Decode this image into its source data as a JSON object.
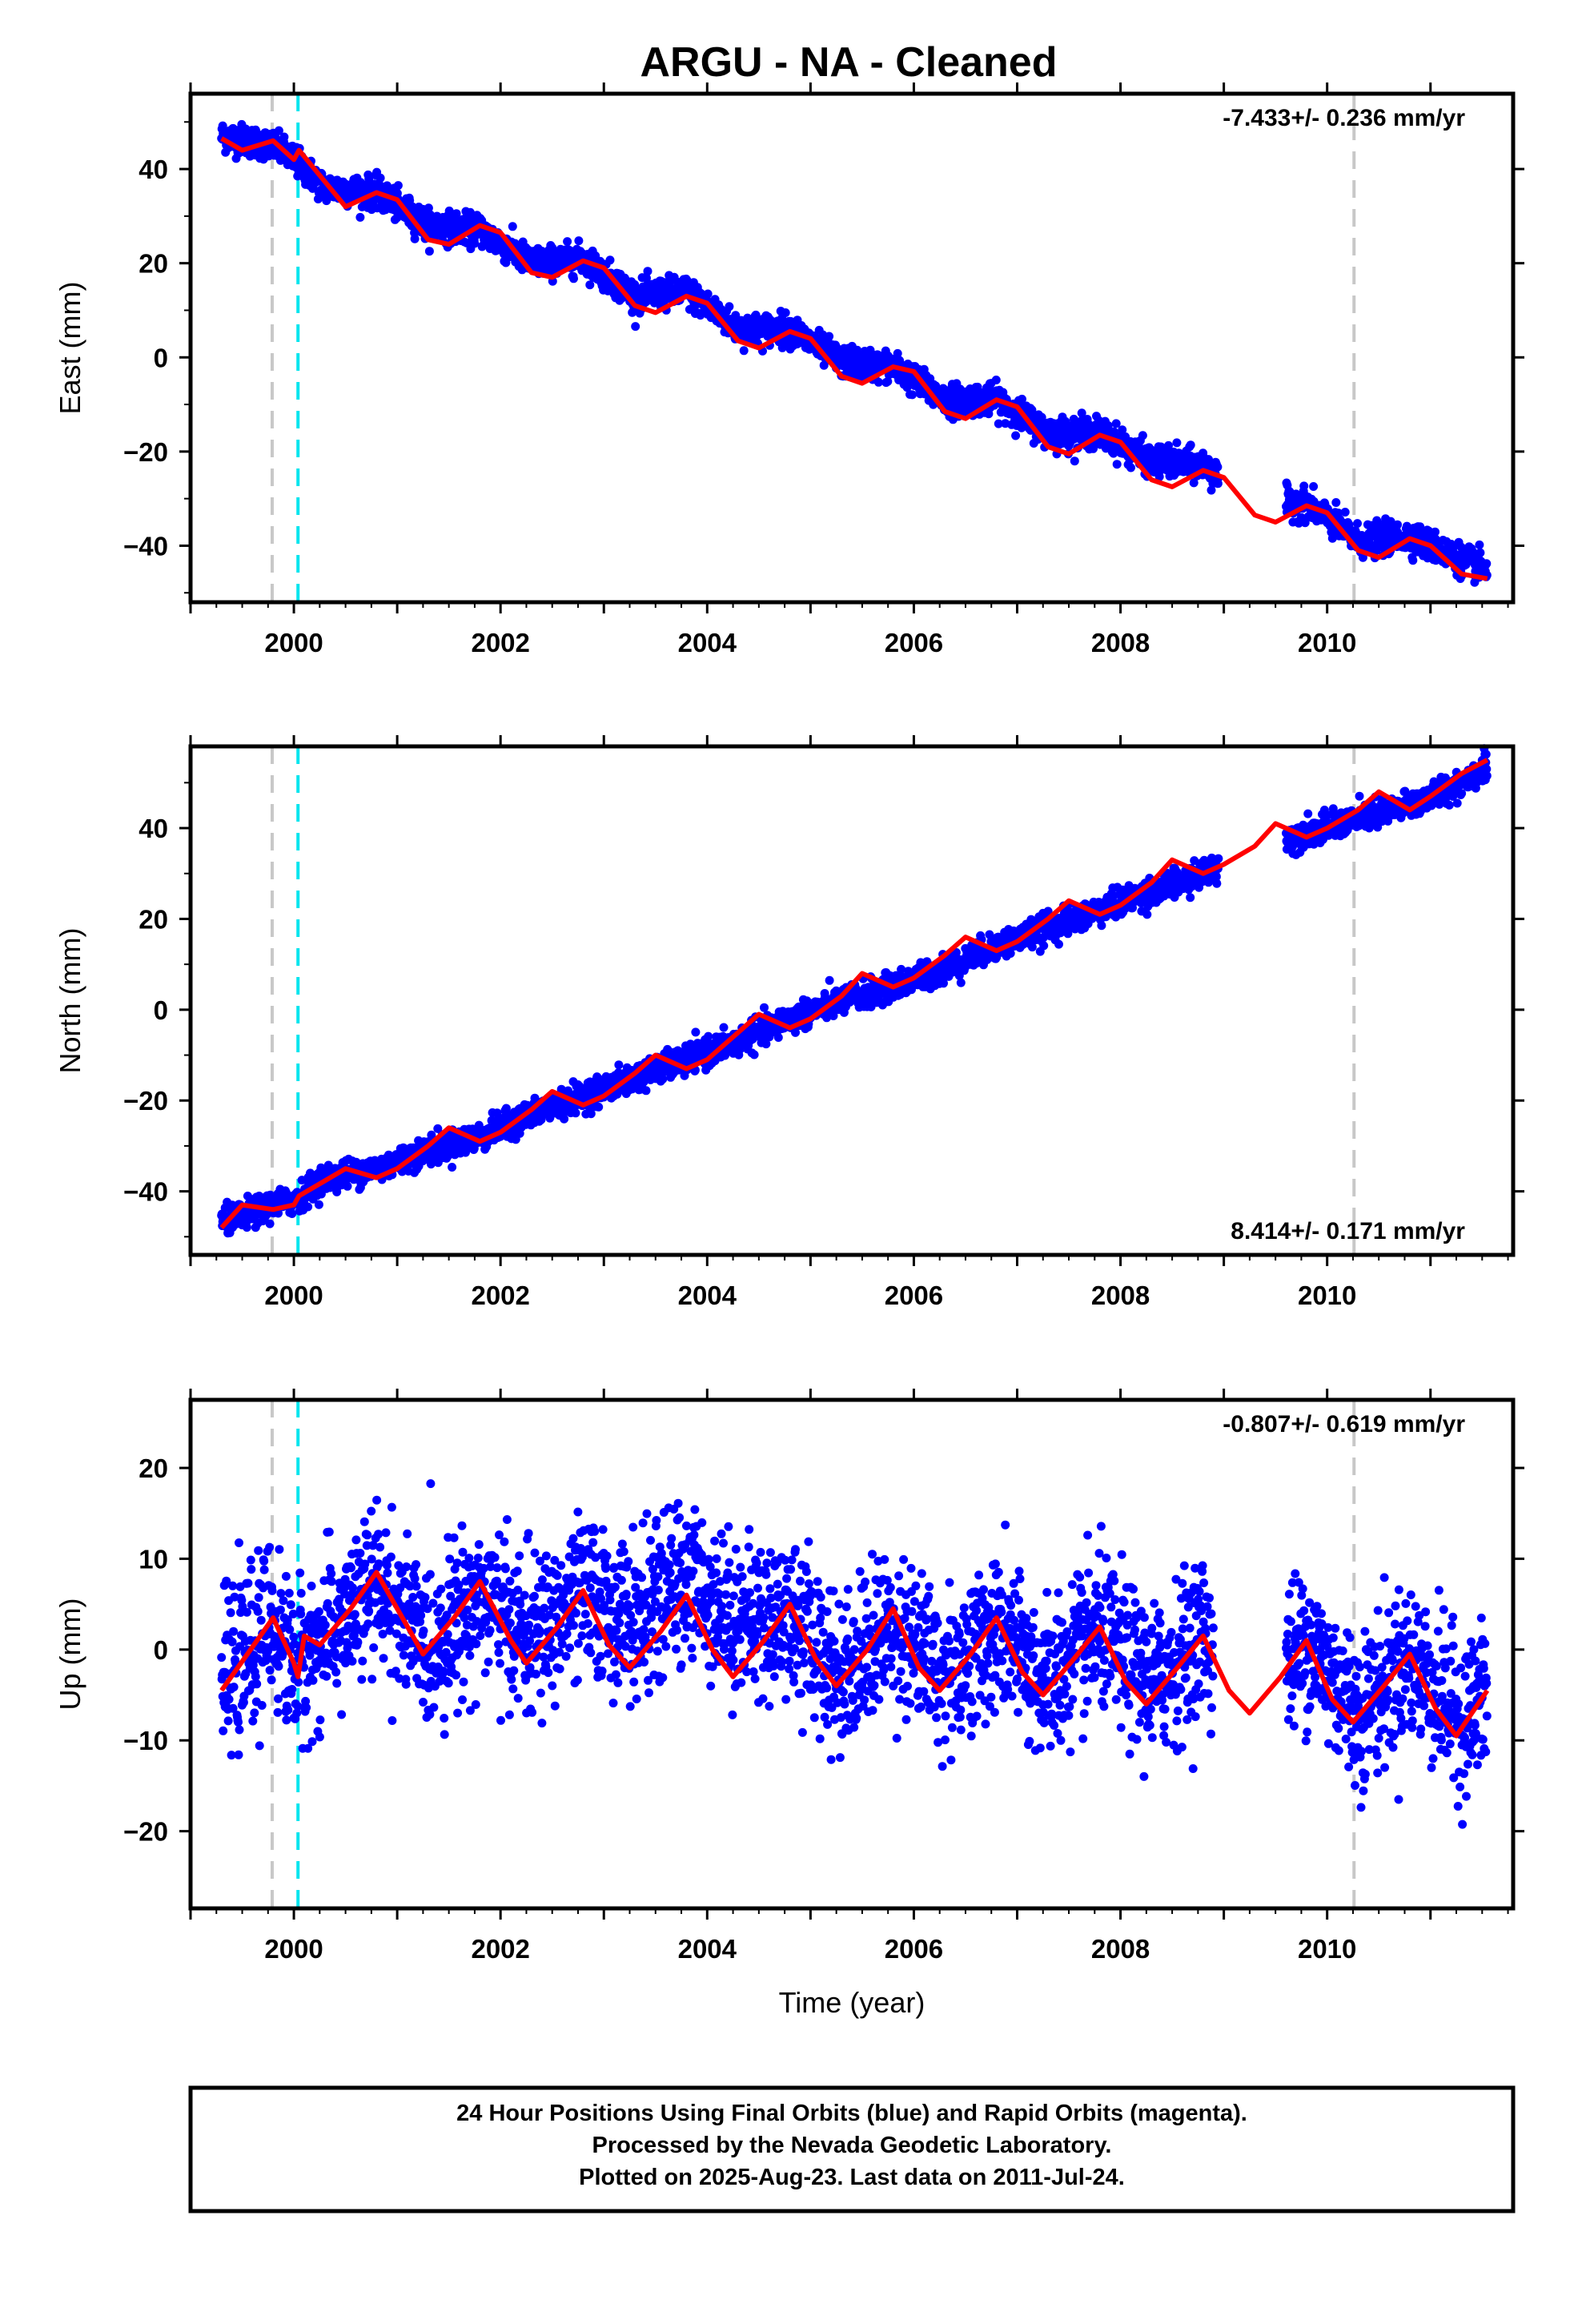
{
  "title": "ARGU  - NA - Cleaned",
  "colors": {
    "points": "#0000ff",
    "fit": "#ff0000",
    "event_gray": "#c8c8c8",
    "event_cyan": "#00e5ee",
    "frame": "#000000"
  },
  "chart_data": [
    {
      "type": "scatter",
      "component": "East",
      "ylabel": "East (mm)",
      "xlabel": "",
      "rate_label": "-7.433+/- 0.236 mm/yr",
      "rate_position": "top-right",
      "xlim": [
        1999.0,
        2011.8
      ],
      "ylim": [
        -52,
        56
      ],
      "xticks": [
        "2000",
        "2002",
        "2004",
        "2006",
        "2008",
        "2010"
      ],
      "yticks": [
        "40",
        "20",
        "0",
        "−20",
        "−40"
      ],
      "ytick_values": [
        40,
        20,
        0,
        -20,
        -40
      ],
      "gray_event_lines": [
        1999.79,
        2010.26
      ],
      "cyan_event_lines": [
        2000.04
      ],
      "series": [
        {
          "kind": "observed_points_trend",
          "x": [
            1999.3,
            1999.8,
            2000.0,
            2000.3,
            2000.8,
            2001.3,
            2001.8,
            2002.3,
            2002.8,
            2003.3,
            2003.8,
            2004.3,
            2004.8,
            2005.3,
            2005.8,
            2006.3,
            2006.8,
            2007.3,
            2007.8,
            2008.3,
            2008.8,
            2009.3,
            2009.8,
            2010.3,
            2010.8,
            2011.3,
            2011.55
          ],
          "y": [
            47,
            45,
            42,
            36,
            35,
            28,
            27,
            20,
            21,
            13,
            14,
            6,
            6,
            -1,
            -2,
            -9,
            -9,
            -16,
            -16,
            -22,
            -23,
            -31,
            -31,
            -39,
            -38,
            -43,
            -45
          ]
        },
        {
          "kind": "model_fit",
          "x": [
            1999.3,
            1999.5,
            1999.8,
            2000.0,
            2000.05,
            2000.2,
            2000.5,
            2000.8,
            2001.0,
            2001.3,
            2001.5,
            2001.8,
            2002.0,
            2002.3,
            2002.5,
            2002.8,
            2003.0,
            2003.3,
            2003.5,
            2003.8,
            2004.0,
            2004.3,
            2004.5,
            2004.8,
            2005.0,
            2005.3,
            2005.5,
            2005.8,
            2006.0,
            2006.3,
            2006.5,
            2006.8,
            2007.0,
            2007.3,
            2007.5,
            2007.8,
            2008.0,
            2008.3,
            2008.5,
            2008.8,
            2009.0,
            2009.3,
            2009.5,
            2009.8,
            2010.0,
            2010.3,
            2010.5,
            2010.8,
            2011.0,
            2011.3,
            2011.55
          ],
          "y": [
            46.5,
            44,
            46,
            42,
            44,
            40,
            32,
            35,
            33.5,
            25,
            24,
            28,
            26.5,
            18,
            17,
            20.5,
            19,
            11,
            9.5,
            13,
            11.5,
            3.5,
            2,
            5.5,
            4,
            -4,
            -5.5,
            -2,
            -3,
            -11.5,
            -13,
            -9,
            -10.5,
            -19,
            -20.5,
            -16.5,
            -18,
            -26,
            -27.5,
            -24,
            -25.5,
            -33.5,
            -35,
            -31.5,
            -33,
            -41,
            -42.5,
            -38.5,
            -40,
            -46,
            -47
          ]
        }
      ]
    },
    {
      "type": "scatter",
      "component": "North",
      "ylabel": "North (mm)",
      "xlabel": "",
      "rate_label": "8.414+/- 0.171 mm/yr",
      "rate_position": "bottom-right",
      "xlim": [
        1999.0,
        2011.8
      ],
      "ylim": [
        -54,
        58
      ],
      "xticks": [
        "2000",
        "2002",
        "2004",
        "2006",
        "2008",
        "2010"
      ],
      "yticks": [
        "40",
        "20",
        "0",
        "−20",
        "−40"
      ],
      "ytick_values": [
        40,
        20,
        0,
        -20,
        -40
      ],
      "gray_event_lines": [
        1999.79,
        2010.26
      ],
      "cyan_event_lines": [
        2000.04
      ],
      "series": [
        {
          "kind": "observed_points_trend",
          "x": [
            1999.3,
            1999.8,
            2000.0,
            2000.3,
            2000.8,
            2001.3,
            2001.8,
            2002.3,
            2002.8,
            2003.3,
            2003.8,
            2004.3,
            2004.8,
            2005.3,
            2005.8,
            2006.3,
            2006.8,
            2007.3,
            2007.8,
            2008.3,
            2008.8,
            2009.3,
            2009.8,
            2010.3,
            2010.8,
            2011.3,
            2011.55
          ],
          "y": [
            -47,
            -43,
            -42,
            -37,
            -35,
            -31,
            -28,
            -23,
            -19,
            -15,
            -11,
            -7,
            -2,
            2,
            5,
            9,
            14,
            18,
            22,
            26,
            30,
            35,
            39,
            42,
            45,
            50,
            54
          ]
        },
        {
          "kind": "model_fit",
          "x": [
            1999.3,
            1999.5,
            1999.8,
            2000.0,
            2000.05,
            2000.2,
            2000.5,
            2000.8,
            2001.0,
            2001.3,
            2001.5,
            2001.8,
            2002.0,
            2002.3,
            2002.5,
            2002.8,
            2003.0,
            2003.3,
            2003.5,
            2003.8,
            2004.0,
            2004.3,
            2004.5,
            2004.8,
            2005.0,
            2005.3,
            2005.5,
            2005.8,
            2006.0,
            2006.3,
            2006.5,
            2006.8,
            2007.0,
            2007.3,
            2007.5,
            2007.8,
            2008.0,
            2008.3,
            2008.5,
            2008.8,
            2009.0,
            2009.3,
            2009.5,
            2009.8,
            2010.0,
            2010.3,
            2010.5,
            2010.8,
            2011.0,
            2011.3,
            2011.55
          ],
          "y": [
            -48,
            -43,
            -44,
            -43,
            -41,
            -39,
            -35,
            -37,
            -35,
            -30,
            -26,
            -29,
            -27,
            -22,
            -18,
            -21,
            -19,
            -14,
            -10,
            -13,
            -11,
            -5,
            -1,
            -4,
            -2,
            3,
            8,
            5,
            7,
            12,
            16,
            13,
            15,
            20,
            24,
            21,
            23,
            28,
            33,
            30,
            32,
            36,
            41,
            38,
            40,
            44,
            48,
            44,
            47,
            52,
            55
          ]
        }
      ]
    },
    {
      "type": "scatter",
      "component": "Up",
      "ylabel": "Up (mm)",
      "xlabel": "Time (year)",
      "rate_label": "-0.807+/- 0.619 mm/yr",
      "rate_position": "top-right",
      "xlim": [
        1999.0,
        2011.8
      ],
      "ylim": [
        -28.5,
        27.5
      ],
      "xticks": [
        "2000",
        "2002",
        "2004",
        "2006",
        "2008",
        "2010"
      ],
      "yticks": [
        "20",
        "10",
        "0",
        "−10",
        "−20"
      ],
      "ytick_values": [
        20,
        10,
        0,
        -10,
        -20
      ],
      "gray_event_lines": [
        1999.79,
        2010.26
      ],
      "cyan_event_lines": [
        2000.04
      ],
      "series": [
        {
          "kind": "observed_points_trend",
          "x": [
            1999.3,
            1999.8,
            2000.0,
            2000.3,
            2000.8,
            2001.3,
            2001.8,
            2002.3,
            2002.8,
            2003.3,
            2003.8,
            2004.3,
            2004.8,
            2005.3,
            2005.8,
            2006.3,
            2006.8,
            2007.3,
            2007.8,
            2008.3,
            2008.8,
            2009.3,
            2009.8,
            2010.3,
            2010.8,
            2011.3,
            2011.55
          ],
          "y": [
            -4,
            3,
            -2,
            1,
            7,
            0,
            6,
            1,
            6,
            3,
            8,
            3,
            4,
            -3,
            3,
            -3,
            2,
            -4,
            2,
            -4,
            2,
            -6,
            1,
            -7,
            -1,
            -8,
            -5
          ]
        },
        {
          "kind": "model_fit",
          "x": [
            1999.3,
            1999.55,
            1999.8,
            2000.0,
            2000.04,
            2000.1,
            2000.25,
            2000.55,
            2000.8,
            2001.05,
            2001.25,
            2001.55,
            2001.8,
            2002.1,
            2002.25,
            2002.55,
            2002.8,
            2003.05,
            2003.25,
            2003.55,
            2003.8,
            2004.05,
            2004.25,
            2004.55,
            2004.8,
            2005.05,
            2005.25,
            2005.55,
            2005.8,
            2006.05,
            2006.25,
            2006.55,
            2006.8,
            2007.05,
            2007.25,
            2007.55,
            2007.8,
            2008.05,
            2008.25,
            2008.55,
            2008.8,
            2009.05,
            2009.25,
            2009.55,
            2009.8,
            2010.05,
            2010.25,
            2010.55,
            2010.8,
            2011.05,
            2011.25,
            2011.55
          ],
          "y": [
            -4.5,
            -0.5,
            3.5,
            -1.5,
            -3,
            1.5,
            0.5,
            4.5,
            8.5,
            3.5,
            -0.5,
            3.5,
            7.5,
            1,
            -1.5,
            2.5,
            6.5,
            0.5,
            -2,
            2,
            6,
            0,
            -3,
            1,
            5,
            -1,
            -4,
            0,
            4.5,
            -2,
            -4.5,
            -0.5,
            3.5,
            -2.5,
            -5,
            -1,
            2.5,
            -3.5,
            -6,
            -2,
            1.5,
            -4.5,
            -7,
            -3,
            1,
            -5.5,
            -8,
            -4,
            -0.5,
            -6.5,
            -9.5,
            -4.5
          ]
        }
      ]
    }
  ],
  "footer": {
    "line1": "24 Hour Positions Using Final Orbits (blue) and Rapid Orbits (magenta).",
    "line2": "Processed by the Nevada Geodetic Laboratory.",
    "line3": "Plotted on 2025-Aug-23. Last data on 2011-Jul-24."
  }
}
